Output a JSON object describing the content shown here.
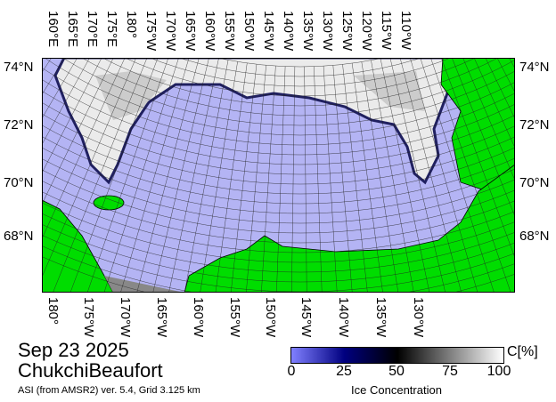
{
  "title": {
    "date": "Sep 23 2025",
    "region": "ChukchiBeaufort",
    "source": "ASI (from AMSR2) ver. 5.4,  Grid 3.125 km"
  },
  "colorbar": {
    "unit": "C[%]",
    "ticks": [
      "0",
      "25",
      "50",
      "75",
      "100"
    ],
    "label": "Ice Concentration",
    "colors": [
      "#8080ff",
      "#000080",
      "#000000",
      "#808080",
      "#ffffff"
    ]
  },
  "map": {
    "water_color": "#b4b4f4",
    "land_color": "#00dd00",
    "ice_color": "#f0f0f0",
    "top_lon_labels": [
      "160°E",
      "165°E",
      "170°E",
      "175°E",
      "180°",
      "175°W",
      "170°W",
      "165°W",
      "160°W",
      "155°W",
      "150°W",
      "145°W",
      "140°W",
      "135°W",
      "130°W",
      "125°W",
      "120°W",
      "115°W",
      "110°W"
    ],
    "bottom_lon_labels": [
      "180°",
      "175°W",
      "170°W",
      "165°W",
      "160°W",
      "155°W",
      "150°W",
      "145°W",
      "140°W",
      "135°W",
      "130°W"
    ],
    "left_lat_labels": [
      "74°N",
      "72°N",
      "70°N",
      "68°N"
    ],
    "right_lat_labels": [
      "74°N",
      "72°N",
      "70°N",
      "68°N"
    ]
  }
}
